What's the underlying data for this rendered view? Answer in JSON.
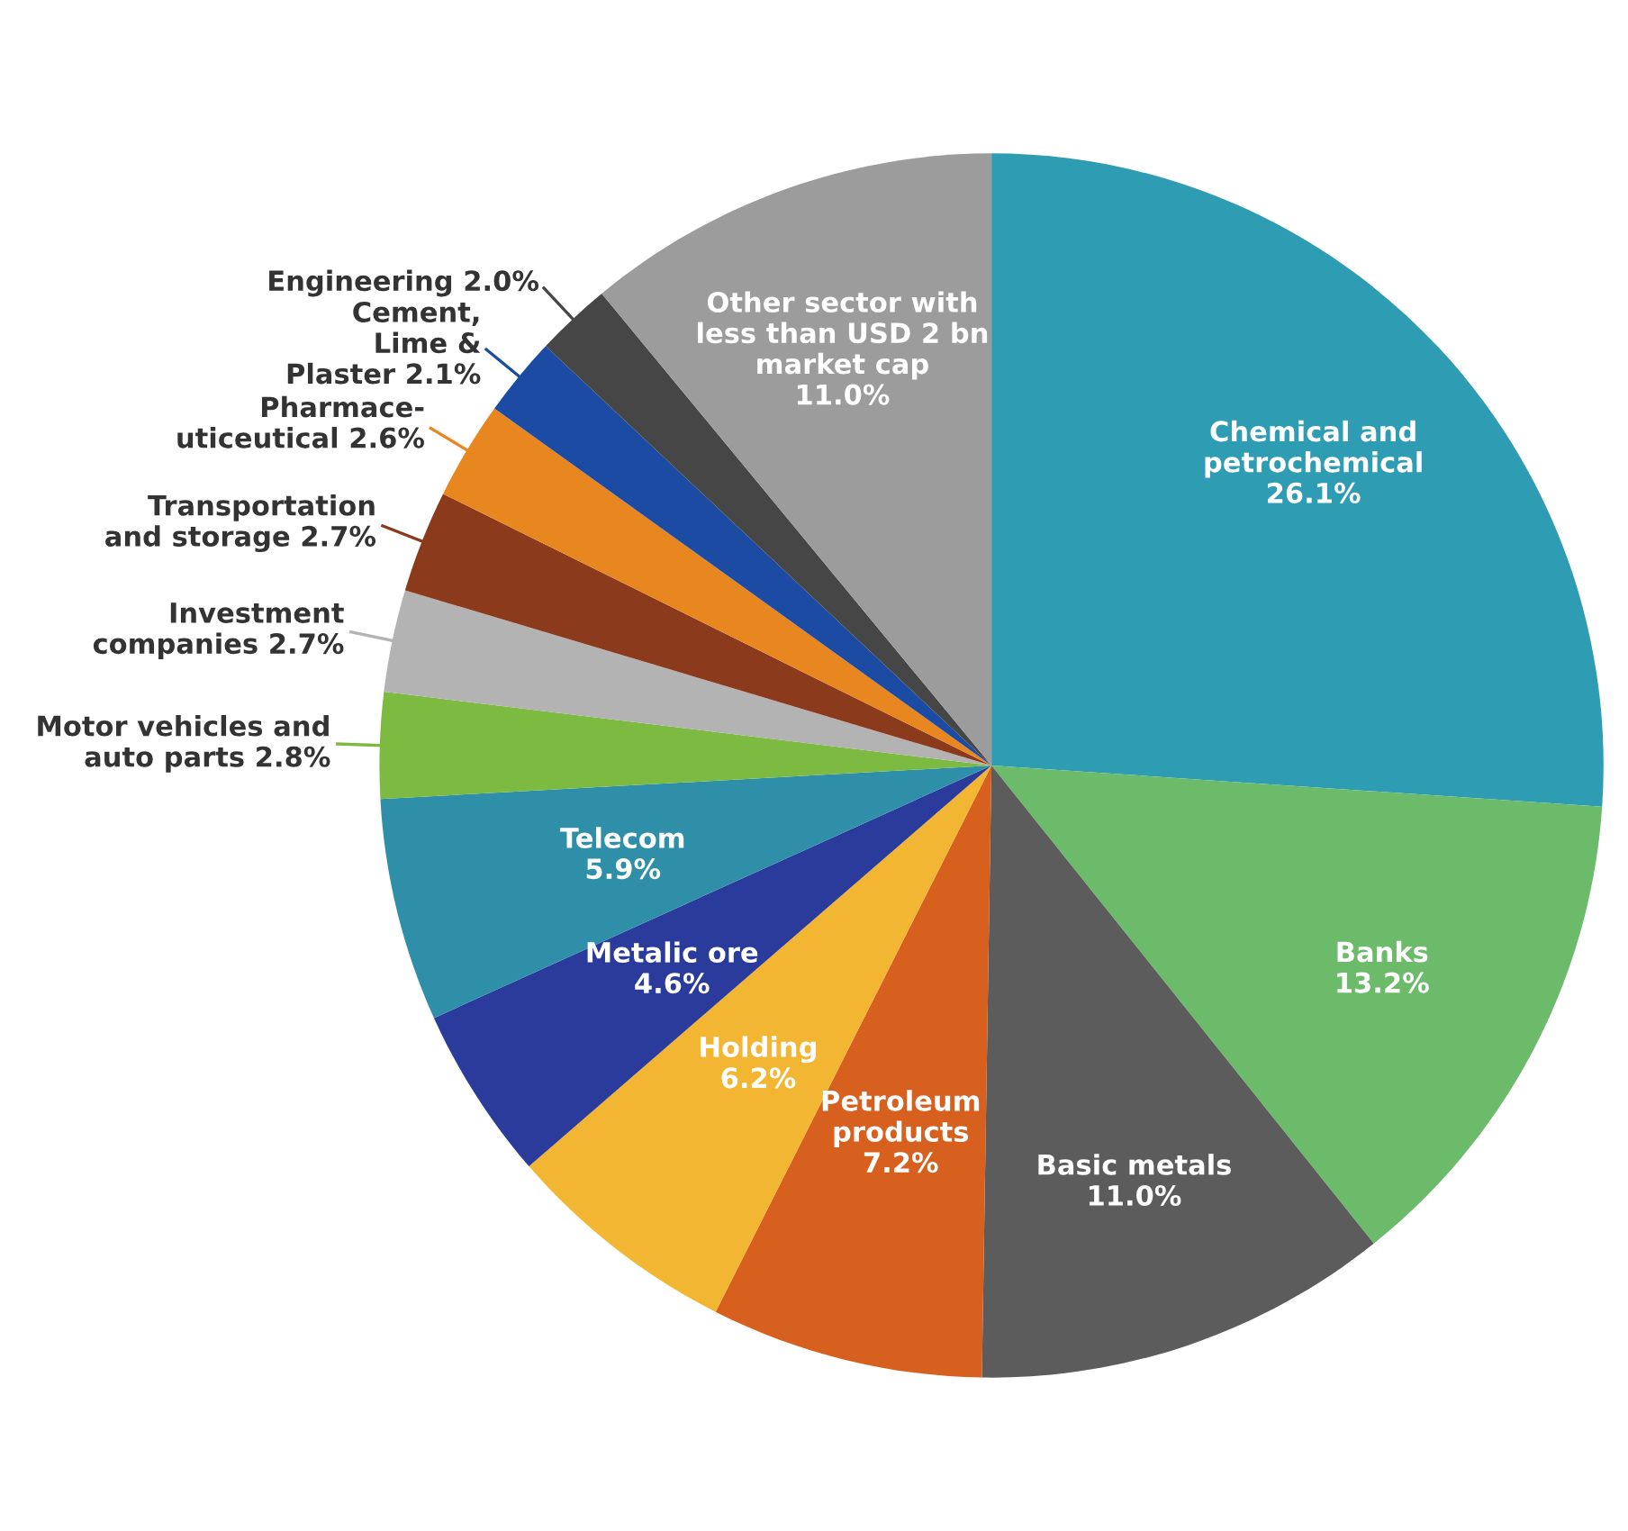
{
  "chart_data": {
    "type": "pie",
    "categories": [
      "Chemical and\npetrochemical",
      "Banks",
      "Basic metals",
      "Petroleum\nproducts",
      "Holding",
      "Metalic ore",
      "Telecom",
      "Motor vehicles and\nauto parts",
      "Investment\ncompanies",
      "Transportation\nand storage",
      "Pharmace-\nuticeutical",
      "Cement,\nLime &\nPlaster",
      "Engineering",
      "Other sector with\nless than USD 2 bn\nmarket cap"
    ],
    "values": [
      26.1,
      13.2,
      11.0,
      7.2,
      6.2,
      4.6,
      5.9,
      2.8,
      2.7,
      2.7,
      2.6,
      2.1,
      2.0,
      11.0
    ],
    "value_labels": [
      "26.1%",
      "13.2%",
      "11.0%",
      "7.2%",
      "6.2%",
      "4.6%",
      "5.9%",
      "2.8%",
      "2.7%",
      "2.7%",
      "2.6%",
      "2.1%",
      "2.0%",
      "11.0%"
    ],
    "colors": [
      "#2e9cb2",
      "#6cbb6a",
      "#5c5c5c",
      "#d8601e",
      "#f2b632",
      "#2b3b9c",
      "#2f8fa9",
      "#7cba42",
      "#b3b3b3",
      "#8b3b1c",
      "#e8871f",
      "#1b4ba2",
      "#464646",
      "#9c9c9c"
    ]
  }
}
